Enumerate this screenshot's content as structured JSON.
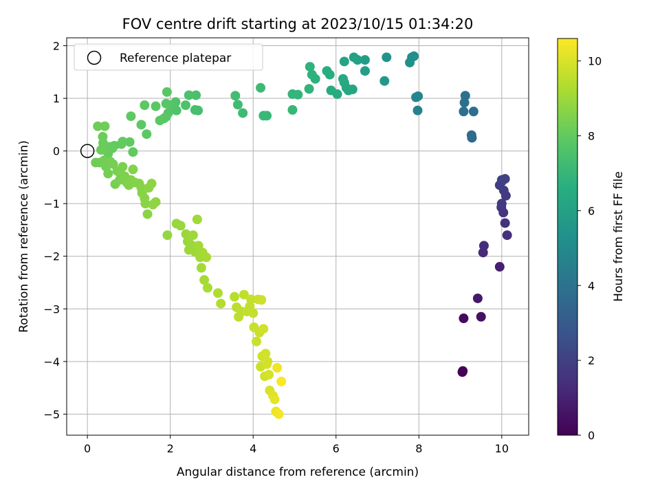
{
  "chart_data": {
    "type": "scatter",
    "title": "FOV centre drift starting at 2023/10/15 01:34:20",
    "xlabel": "Angular distance from reference (arcmin)",
    "ylabel": "Rotation from reference (arcmin)",
    "xlim": [
      -0.5,
      10.65
    ],
    "ylim": [
      -5.4,
      2.15
    ],
    "xticks": [
      0,
      2,
      4,
      6,
      8,
      10
    ],
    "yticks": [
      2,
      1,
      0,
      -1,
      -2,
      -3,
      -4,
      -5
    ],
    "grid": true,
    "legend": {
      "placement": "top-left",
      "label": "Reference platepar"
    },
    "reference_point": {
      "x": 0,
      "y": 0
    },
    "colorbar": {
      "label": "Hours from first FF file",
      "range": [
        0,
        10.6
      ],
      "ticks": [
        0,
        2,
        4,
        6,
        8,
        10
      ],
      "colormap": "viridis"
    },
    "points": [
      {
        "x": 9.05,
        "y": -4.2,
        "c": 0.0
      },
      {
        "x": 9.06,
        "y": -4.18,
        "c": 0.05
      },
      {
        "x": 9.08,
        "y": -3.18,
        "c": 0.3
      },
      {
        "x": 9.5,
        "y": -3.15,
        "c": 0.5
      },
      {
        "x": 9.42,
        "y": -2.8,
        "c": 0.7
      },
      {
        "x": 9.95,
        "y": -2.2,
        "c": 0.9
      },
      {
        "x": 9.55,
        "y": -1.93,
        "c": 1.2
      },
      {
        "x": 9.57,
        "y": -1.8,
        "c": 1.3
      },
      {
        "x": 10.13,
        "y": -1.6,
        "c": 1.4
      },
      {
        "x": 10.08,
        "y": -1.37,
        "c": 1.5
      },
      {
        "x": 10.04,
        "y": -1.17,
        "c": 1.6
      },
      {
        "x": 9.99,
        "y": -1.07,
        "c": 1.7
      },
      {
        "x": 10.0,
        "y": -1.0,
        "c": 1.75
      },
      {
        "x": 10.1,
        "y": -0.85,
        "c": 1.8
      },
      {
        "x": 10.05,
        "y": -0.75,
        "c": 1.85
      },
      {
        "x": 9.95,
        "y": -0.65,
        "c": 1.9
      },
      {
        "x": 10.0,
        "y": -0.58,
        "c": 1.95
      },
      {
        "x": 10.08,
        "y": -0.53,
        "c": 2.0
      },
      {
        "x": 10.0,
        "y": -0.55,
        "c": 2.05
      },
      {
        "x": 9.28,
        "y": 0.25,
        "c": 3.6
      },
      {
        "x": 9.27,
        "y": 0.3,
        "c": 3.65
      },
      {
        "x": 9.08,
        "y": 0.75,
        "c": 3.8
      },
      {
        "x": 9.32,
        "y": 0.75,
        "c": 3.85
      },
      {
        "x": 9.1,
        "y": 0.92,
        "c": 3.9
      },
      {
        "x": 9.12,
        "y": 1.05,
        "c": 3.95
      },
      {
        "x": 7.97,
        "y": 0.77,
        "c": 4.6
      },
      {
        "x": 7.98,
        "y": 1.04,
        "c": 4.7
      },
      {
        "x": 7.93,
        "y": 1.02,
        "c": 4.8
      },
      {
        "x": 7.88,
        "y": 1.8,
        "c": 5.1
      },
      {
        "x": 7.83,
        "y": 1.78,
        "c": 5.2
      },
      {
        "x": 7.78,
        "y": 1.68,
        "c": 5.25
      },
      {
        "x": 7.22,
        "y": 1.78,
        "c": 5.4
      },
      {
        "x": 7.17,
        "y": 1.33,
        "c": 5.6
      },
      {
        "x": 6.7,
        "y": 1.73,
        "c": 5.8
      },
      {
        "x": 6.7,
        "y": 1.52,
        "c": 5.9
      },
      {
        "x": 6.52,
        "y": 1.73,
        "c": 6.0
      },
      {
        "x": 6.43,
        "y": 1.78,
        "c": 6.05
      },
      {
        "x": 6.2,
        "y": 1.7,
        "c": 6.1
      },
      {
        "x": 6.4,
        "y": 1.17,
        "c": 6.2
      },
      {
        "x": 6.3,
        "y": 1.15,
        "c": 6.25
      },
      {
        "x": 6.25,
        "y": 1.2,
        "c": 6.3
      },
      {
        "x": 6.2,
        "y": 1.3,
        "c": 6.35
      },
      {
        "x": 6.17,
        "y": 1.37,
        "c": 6.4
      },
      {
        "x": 6.03,
        "y": 1.08,
        "c": 6.45
      },
      {
        "x": 5.88,
        "y": 1.15,
        "c": 6.5
      },
      {
        "x": 5.85,
        "y": 1.45,
        "c": 6.55
      },
      {
        "x": 5.78,
        "y": 1.52,
        "c": 6.6
      },
      {
        "x": 5.5,
        "y": 1.37,
        "c": 6.7
      },
      {
        "x": 5.42,
        "y": 1.45,
        "c": 6.75
      },
      {
        "x": 5.37,
        "y": 1.6,
        "c": 6.8
      },
      {
        "x": 5.35,
        "y": 1.18,
        "c": 6.85
      },
      {
        "x": 5.08,
        "y": 1.07,
        "c": 6.9
      },
      {
        "x": 4.95,
        "y": 1.08,
        "c": 6.95
      },
      {
        "x": 4.95,
        "y": 0.78,
        "c": 7.0
      },
      {
        "x": 4.33,
        "y": 0.67,
        "c": 7.05
      },
      {
        "x": 4.25,
        "y": 0.67,
        "c": 7.1
      },
      {
        "x": 4.18,
        "y": 1.2,
        "c": 7.15
      },
      {
        "x": 3.75,
        "y": 0.72,
        "c": 7.2
      },
      {
        "x": 3.63,
        "y": 0.88,
        "c": 7.25
      },
      {
        "x": 3.57,
        "y": 1.05,
        "c": 7.3
      },
      {
        "x": 2.67,
        "y": 0.77,
        "c": 7.35
      },
      {
        "x": 2.6,
        "y": 0.78,
        "c": 7.4
      },
      {
        "x": 2.62,
        "y": 1.06,
        "c": 7.45
      },
      {
        "x": 2.45,
        "y": 1.06,
        "c": 7.5
      },
      {
        "x": 2.37,
        "y": 0.87,
        "c": 7.55
      },
      {
        "x": 2.15,
        "y": 0.77,
        "c": 7.6
      },
      {
        "x": 2.13,
        "y": 0.93,
        "c": 7.65
      },
      {
        "x": 2.0,
        "y": 0.87,
        "c": 7.7
      },
      {
        "x": 1.95,
        "y": 0.72,
        "c": 7.72
      },
      {
        "x": 1.9,
        "y": 0.65,
        "c": 7.75
      },
      {
        "x": 1.9,
        "y": 0.9,
        "c": 7.78
      },
      {
        "x": 1.92,
        "y": 1.12,
        "c": 7.8
      },
      {
        "x": 1.85,
        "y": 0.62,
        "c": 7.82
      },
      {
        "x": 1.75,
        "y": 0.58,
        "c": 7.84
      },
      {
        "x": 1.65,
        "y": 0.85,
        "c": 7.86
      },
      {
        "x": 1.38,
        "y": 0.87,
        "c": 7.88
      },
      {
        "x": 1.43,
        "y": 0.32,
        "c": 7.9
      },
      {
        "x": 1.3,
        "y": 0.5,
        "c": 7.92
      },
      {
        "x": 1.05,
        "y": 0.66,
        "c": 7.94
      },
      {
        "x": 1.1,
        "y": -0.02,
        "c": 7.96
      },
      {
        "x": 1.02,
        "y": 0.17,
        "c": 7.98
      },
      {
        "x": 0.85,
        "y": 0.18,
        "c": 8.0
      },
      {
        "x": 0.82,
        "y": 0.13,
        "c": 8.02
      },
      {
        "x": 0.65,
        "y": 0.1,
        "c": 8.04
      },
      {
        "x": 0.6,
        "y": 0.05,
        "c": 8.06
      },
      {
        "x": 0.55,
        "y": 0.08,
        "c": 8.08
      },
      {
        "x": 0.5,
        "y": -0.05,
        "c": 8.1
      },
      {
        "x": 0.45,
        "y": 0.03,
        "c": 8.12
      },
      {
        "x": 0.38,
        "y": 0.15,
        "c": 8.14
      },
      {
        "x": 0.37,
        "y": 0.27,
        "c": 8.16
      },
      {
        "x": 0.33,
        "y": 0.02,
        "c": 8.18
      },
      {
        "x": 0.3,
        "y": -0.22,
        "c": 8.2
      },
      {
        "x": 0.25,
        "y": 0.47,
        "c": 8.22
      },
      {
        "x": 0.2,
        "y": -0.22,
        "c": 8.24
      },
      {
        "x": 0.42,
        "y": 0.47,
        "c": 8.26
      },
      {
        "x": 0.4,
        "y": -0.18,
        "c": 8.28
      },
      {
        "x": 0.45,
        "y": -0.3,
        "c": 8.3
      },
      {
        "x": 0.5,
        "y": -0.43,
        "c": 8.32
      },
      {
        "x": 0.55,
        "y": -0.2,
        "c": 8.34
      },
      {
        "x": 0.62,
        "y": -0.25,
        "c": 8.36
      },
      {
        "x": 0.67,
        "y": -0.63,
        "c": 8.38
      },
      {
        "x": 0.72,
        "y": -0.38,
        "c": 8.4
      },
      {
        "x": 0.78,
        "y": -0.55,
        "c": 8.42
      },
      {
        "x": 0.8,
        "y": -0.43,
        "c": 8.44
      },
      {
        "x": 0.85,
        "y": -0.3,
        "c": 8.46
      },
      {
        "x": 0.9,
        "y": -0.48,
        "c": 8.48
      },
      {
        "x": 0.95,
        "y": -0.6,
        "c": 8.5
      },
      {
        "x": 1.0,
        "y": -0.65,
        "c": 8.52
      },
      {
        "x": 1.05,
        "y": -0.55,
        "c": 8.54
      },
      {
        "x": 1.1,
        "y": -0.35,
        "c": 8.56
      },
      {
        "x": 1.15,
        "y": -0.6,
        "c": 8.58
      },
      {
        "x": 1.25,
        "y": -0.62,
        "c": 8.6
      },
      {
        "x": 1.3,
        "y": -0.7,
        "c": 8.62
      },
      {
        "x": 1.32,
        "y": -0.8,
        "c": 8.64
      },
      {
        "x": 1.38,
        "y": -0.9,
        "c": 8.66
      },
      {
        "x": 1.4,
        "y": -1.0,
        "c": 8.68
      },
      {
        "x": 1.45,
        "y": -1.2,
        "c": 8.7
      },
      {
        "x": 1.48,
        "y": -0.7,
        "c": 8.72
      },
      {
        "x": 1.55,
        "y": -0.62,
        "c": 8.74
      },
      {
        "x": 1.58,
        "y": -1.02,
        "c": 8.76
      },
      {
        "x": 1.65,
        "y": -0.97,
        "c": 8.78
      },
      {
        "x": 1.93,
        "y": -1.6,
        "c": 8.85
      },
      {
        "x": 2.15,
        "y": -1.38,
        "c": 8.9
      },
      {
        "x": 2.25,
        "y": -1.42,
        "c": 8.92
      },
      {
        "x": 2.38,
        "y": -1.58,
        "c": 8.94
      },
      {
        "x": 2.42,
        "y": -1.72,
        "c": 8.96
      },
      {
        "x": 2.45,
        "y": -1.88,
        "c": 8.98
      },
      {
        "x": 2.5,
        "y": -1.78,
        "c": 9.0
      },
      {
        "x": 2.55,
        "y": -1.6,
        "c": 9.02
      },
      {
        "x": 2.6,
        "y": -1.92,
        "c": 9.04
      },
      {
        "x": 2.65,
        "y": -1.3,
        "c": 9.06
      },
      {
        "x": 2.68,
        "y": -1.8,
        "c": 9.08
      },
      {
        "x": 2.72,
        "y": -2.02,
        "c": 9.1
      },
      {
        "x": 2.75,
        "y": -2.22,
        "c": 9.12
      },
      {
        "x": 2.78,
        "y": -1.93,
        "c": 9.14
      },
      {
        "x": 2.82,
        "y": -2.45,
        "c": 9.16
      },
      {
        "x": 2.87,
        "y": -2.02,
        "c": 9.18
      },
      {
        "x": 2.9,
        "y": -2.6,
        "c": 9.2
      },
      {
        "x": 3.15,
        "y": -2.7,
        "c": 9.3
      },
      {
        "x": 3.22,
        "y": -2.9,
        "c": 9.35
      },
      {
        "x": 3.55,
        "y": -2.77,
        "c": 9.45
      },
      {
        "x": 3.6,
        "y": -2.97,
        "c": 9.5
      },
      {
        "x": 3.65,
        "y": -3.15,
        "c": 9.52
      },
      {
        "x": 3.72,
        "y": -3.05,
        "c": 9.55
      },
      {
        "x": 3.78,
        "y": -2.73,
        "c": 9.58
      },
      {
        "x": 3.85,
        "y": -3.05,
        "c": 9.6
      },
      {
        "x": 3.92,
        "y": -2.95,
        "c": 9.62
      },
      {
        "x": 3.95,
        "y": -2.82,
        "c": 9.65
      },
      {
        "x": 4.0,
        "y": -3.08,
        "c": 9.68
      },
      {
        "x": 4.02,
        "y": -3.35,
        "c": 9.7
      },
      {
        "x": 4.08,
        "y": -3.62,
        "c": 9.72
      },
      {
        "x": 4.12,
        "y": -2.82,
        "c": 9.74
      },
      {
        "x": 4.15,
        "y": -3.45,
        "c": 9.76
      },
      {
        "x": 4.18,
        "y": -4.1,
        "c": 9.78
      },
      {
        "x": 4.2,
        "y": -2.83,
        "c": 9.8
      },
      {
        "x": 4.22,
        "y": -3.9,
        "c": 9.82
      },
      {
        "x": 4.25,
        "y": -3.38,
        "c": 9.84
      },
      {
        "x": 4.28,
        "y": -4.28,
        "c": 9.86
      },
      {
        "x": 4.3,
        "y": -3.85,
        "c": 9.88
      },
      {
        "x": 4.33,
        "y": -4.05,
        "c": 9.9
      },
      {
        "x": 4.35,
        "y": -4.0,
        "c": 9.92
      },
      {
        "x": 4.38,
        "y": -4.25,
        "c": 9.95
      },
      {
        "x": 4.4,
        "y": -4.55,
        "c": 10.0
      },
      {
        "x": 4.48,
        "y": -4.65,
        "c": 10.1
      },
      {
        "x": 4.52,
        "y": -4.72,
        "c": 10.2
      },
      {
        "x": 4.55,
        "y": -4.95,
        "c": 10.3
      },
      {
        "x": 4.58,
        "y": -4.12,
        "c": 10.35
      },
      {
        "x": 4.62,
        "y": -5.0,
        "c": 10.45
      },
      {
        "x": 4.68,
        "y": -4.38,
        "c": 10.55
      }
    ]
  }
}
